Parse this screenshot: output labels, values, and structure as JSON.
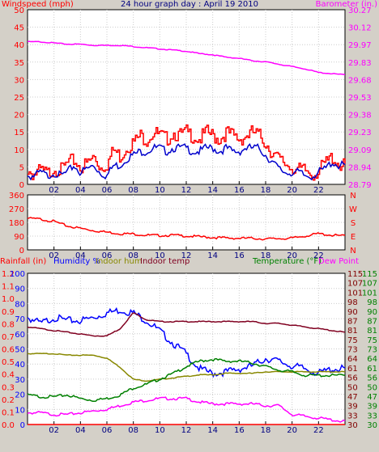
{
  "chart_data": [
    {
      "type": "line",
      "title": "24 hour graph day : April 19 2010",
      "x_ticks": [
        "02",
        "04",
        "06",
        "08",
        "10",
        "12",
        "14",
        "16",
        "18",
        "20",
        "22"
      ],
      "left_axis": {
        "label": "Windspeed (mph)",
        "ticks": [
          "0",
          "5",
          "10",
          "15",
          "20",
          "25",
          "30",
          "35",
          "40",
          "45",
          "50"
        ],
        "range": [
          0,
          50
        ]
      },
      "right_axis": {
        "label": "Barometer (in.)",
        "ticks": [
          "28.79",
          "28.94",
          "29.09",
          "29.23",
          "29.38",
          "29.53",
          "29.68",
          "29.83",
          "29.97",
          "30.12",
          "30.27"
        ],
        "range": [
          28.79,
          30.27
        ]
      },
      "grid": true,
      "series": [
        {
          "name": "Barometer (in.)",
          "color": "#ff00ff",
          "axis": "right",
          "x": [
            0,
            1,
            2,
            3,
            4,
            5,
            6,
            7,
            8,
            9,
            10,
            11,
            12,
            13,
            14,
            15,
            16,
            17,
            18,
            19,
            20,
            21,
            22,
            23,
            24
          ],
          "values": [
            30.0,
            30.0,
            29.99,
            29.98,
            29.98,
            29.97,
            29.97,
            29.97,
            29.96,
            29.95,
            29.94,
            29.93,
            29.92,
            29.9,
            29.89,
            29.87,
            29.86,
            29.84,
            29.83,
            29.81,
            29.79,
            29.77,
            29.74,
            29.73,
            29.72
          ]
        },
        {
          "name": "Wind gust",
          "color": "#ff0000",
          "axis": "left",
          "x": [
            0,
            0.5,
            1,
            1.5,
            2,
            2.5,
            3,
            3.5,
            4,
            4.5,
            5,
            5.5,
            6,
            6.5,
            7,
            7.5,
            8,
            8.5,
            9,
            9.5,
            10,
            10.5,
            11,
            11.5,
            12,
            12.5,
            13,
            13.5,
            14,
            14.5,
            15,
            15.5,
            16,
            16.5,
            17,
            17.5,
            18,
            18.5,
            19,
            19.5,
            20,
            20.5,
            21,
            21.5,
            22,
            22.5,
            23,
            23.5,
            24
          ],
          "values": [
            5,
            4,
            5,
            4,
            6,
            5,
            7,
            8,
            6,
            7,
            9,
            6,
            7,
            11,
            9,
            12,
            13,
            15,
            14,
            16,
            15,
            14,
            16,
            15,
            16,
            15,
            14,
            16,
            15,
            14,
            16,
            15,
            14,
            15,
            16,
            15,
            13,
            10,
            8,
            7,
            6,
            5,
            5,
            4,
            5,
            7,
            9,
            7,
            6
          ]
        },
        {
          "name": "Wind speed",
          "color": "#0000cc",
          "axis": "left",
          "x": [
            0,
            0.5,
            1,
            1.5,
            2,
            2.5,
            3,
            3.5,
            4,
            4.5,
            5,
            5.5,
            6,
            6.5,
            7,
            7.5,
            8,
            8.5,
            9,
            9.5,
            10,
            10.5,
            11,
            11.5,
            12,
            12.5,
            13,
            13.5,
            14,
            14.5,
            15,
            15.5,
            16,
            16.5,
            17,
            17.5,
            18,
            18.5,
            19,
            19.5,
            20,
            20.5,
            21,
            21.5,
            22,
            22.5,
            23,
            23.5,
            24
          ],
          "values": [
            3,
            3,
            4,
            3,
            4,
            3,
            4,
            6,
            4,
            5,
            6,
            4,
            3,
            6,
            6,
            8,
            9,
            10,
            10,
            11,
            11,
            10,
            11,
            11,
            11,
            10,
            10,
            11,
            11,
            10,
            11,
            10,
            10,
            11,
            11,
            11,
            9,
            7,
            5,
            4,
            4,
            4,
            3,
            3,
            4,
            5,
            7,
            6,
            6
          ]
        }
      ]
    },
    {
      "type": "line",
      "x_ticks": [
        "02",
        "04",
        "06",
        "08",
        "10",
        "12",
        "14",
        "16",
        "18",
        "20",
        "22"
      ],
      "left_axis": {
        "label": "",
        "ticks": [
          "0",
          "90",
          "180",
          "270",
          "360"
        ],
        "range": [
          0,
          360
        ]
      },
      "right_axis": {
        "label": "",
        "ticks": [
          "N",
          "E",
          "S",
          "W",
          "N"
        ]
      },
      "grid": true,
      "series": [
        {
          "name": "Wind direction",
          "color": "#ff0000",
          "axis": "left",
          "x": [
            0,
            1,
            2,
            3,
            4,
            5,
            6,
            7,
            8,
            9,
            10,
            11,
            12,
            13,
            14,
            15,
            16,
            17,
            18,
            19,
            20,
            21,
            22,
            23,
            24
          ],
          "values": [
            210,
            205,
            190,
            160,
            145,
            130,
            120,
            110,
            108,
            100,
            98,
            100,
            95,
            90,
            85,
            82,
            80,
            80,
            75,
            78,
            80,
            95,
            110,
            100,
            95
          ]
        }
      ]
    },
    {
      "type": "line",
      "x_ticks": [
        "02",
        "04",
        "06",
        "08",
        "10",
        "12",
        "14",
        "16",
        "18",
        "20",
        "22"
      ],
      "legend": [
        "Rainfall (in)",
        "Humidity %",
        "Indoor hum",
        "Indoor temp",
        "Temperature (°F)",
        "Dew Point"
      ],
      "legend_colors": [
        "#ff0000",
        "#0000ff",
        "#888800",
        "#800020",
        "#008000",
        "#ff00ff"
      ],
      "rain_axis": {
        "ticks": [
          "0.0",
          "0.1",
          "0.2",
          "0.3",
          "0.4",
          "0.5",
          "0.6",
          "0.7",
          "0.8",
          "0.9",
          "1.0",
          "1.1",
          "1.2"
        ],
        "range": [
          0,
          1.2
        ]
      },
      "humidity_axis": {
        "ticks": [
          "0",
          "10",
          "20",
          "30",
          "40",
          "50",
          "60",
          "70",
          "80",
          "90",
          "100"
        ],
        "range": [
          0,
          100
        ]
      },
      "temperature_axis": {
        "ticks": [
          "30",
          "33",
          "39",
          "47",
          "50",
          "56",
          "61",
          "64",
          "73",
          "75",
          "81",
          "87",
          "90",
          "98",
          "101",
          "107",
          "115"
        ],
        "range": [
          30,
          115
        ]
      },
      "grid": true,
      "series": [
        {
          "name": "Humidity %",
          "color": "#0000ff",
          "axis": "humidity",
          "x": [
            0,
            1,
            2,
            3,
            4,
            5,
            6,
            7,
            8,
            9,
            10,
            11,
            12,
            13,
            14,
            15,
            16,
            17,
            18,
            19,
            20,
            21,
            22,
            23,
            24
          ],
          "values": [
            72,
            68,
            72,
            70,
            70,
            72,
            75,
            77,
            75,
            70,
            63,
            55,
            48,
            38,
            35,
            36,
            38,
            40,
            45,
            43,
            40,
            38,
            35,
            38,
            38
          ]
        },
        {
          "name": "Indoor hum",
          "color": "#888800",
          "axis": "humidity",
          "x": [
            0,
            1,
            2,
            3,
            4,
            5,
            6,
            7,
            8,
            9,
            10,
            11,
            12,
            13,
            14,
            15,
            16,
            17,
            18,
            19,
            20,
            21,
            22,
            23,
            24
          ],
          "values": [
            47,
            47,
            47,
            46,
            46,
            46,
            44,
            38,
            30,
            29,
            30,
            31,
            32,
            33,
            33,
            34,
            34,
            34,
            35,
            35,
            35,
            35,
            35,
            35,
            35
          ]
        },
        {
          "name": "Indoor temp",
          "color": "#800020",
          "axis": "temperature",
          "x": [
            0,
            1,
            2,
            3,
            4,
            5,
            6,
            7,
            8,
            9,
            10,
            11,
            12,
            13,
            14,
            15,
            16,
            17,
            18,
            19,
            20,
            21,
            22,
            23,
            24
          ],
          "values": [
            85,
            84,
            83,
            82,
            81,
            80,
            80,
            84,
            93,
            89,
            88,
            88,
            88,
            88,
            88,
            88,
            88,
            88,
            87,
            87,
            86,
            85,
            84,
            83,
            82
          ]
        },
        {
          "name": "Temperature (°F)",
          "color": "#008000",
          "axis": "temperature",
          "x": [
            0,
            1,
            2,
            3,
            4,
            5,
            6,
            7,
            8,
            9,
            10,
            11,
            12,
            13,
            14,
            15,
            16,
            17,
            18,
            19,
            20,
            21,
            22,
            23,
            24
          ],
          "values": [
            47,
            46,
            46,
            47,
            45,
            44,
            45,
            47,
            51,
            53,
            56,
            59,
            63,
            66,
            67,
            66,
            66,
            65,
            63,
            61,
            60,
            58,
            58,
            58,
            58
          ]
        },
        {
          "name": "Dew Point",
          "color": "#ff00ff",
          "axis": "temperature",
          "x": [
            0,
            1,
            2,
            3,
            4,
            5,
            6,
            7,
            8,
            9,
            10,
            11,
            12,
            13,
            14,
            15,
            16,
            17,
            18,
            19,
            20,
            21,
            22,
            23,
            24
          ],
          "values": [
            37,
            37,
            36,
            36,
            37,
            38,
            39,
            41,
            43,
            44,
            45,
            45,
            45,
            43,
            42,
            42,
            42,
            42,
            41,
            41,
            36,
            35,
            34,
            33,
            32
          ]
        },
        {
          "name": "Rainfall (in)",
          "color": "#ff0000",
          "axis": "rain",
          "x": [
            0,
            24
          ],
          "values": [
            0,
            0
          ]
        }
      ]
    }
  ]
}
